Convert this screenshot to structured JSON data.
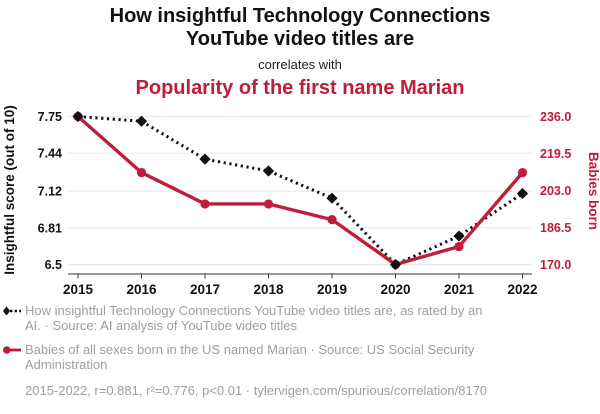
{
  "header": {
    "title_line1": "How insightful Technology Connections",
    "title_line2": "YouTube video titles are",
    "connector": "correlates with",
    "subtitle": "Popularity of the first name Marian"
  },
  "colors": {
    "accent_red": "#c01d3a",
    "series_black": "#111111",
    "legend_gray": "#9e9e9e",
    "gridline": "#ebebeb",
    "axis_line": "#333333"
  },
  "chart_data": {
    "type": "line",
    "x": [
      2015,
      2016,
      2017,
      2018,
      2019,
      2020,
      2021,
      2022
    ],
    "x_tick_labels": [
      "2015",
      "2016",
      "2017",
      "2018",
      "2019",
      "2020",
      "2021",
      "2022"
    ],
    "series": [
      {
        "name": "Insightful score",
        "axis": "left",
        "color": "#111111",
        "line_style": "dotted",
        "marker": "diamond",
        "values": [
          7.75,
          7.71,
          7.39,
          7.29,
          7.06,
          6.5,
          6.74,
          7.1
        ]
      },
      {
        "name": "Babies born",
        "axis": "right",
        "color": "#c01d3a",
        "line_style": "solid",
        "marker": "circle",
        "values": [
          236,
          211,
          197,
          197,
          190,
          170,
          178,
          211
        ]
      }
    ],
    "left_axis": {
      "label": "Insightful score (out of 10)",
      "min": 6.5,
      "max": 7.75,
      "tick_values": [
        7.75,
        7.44,
        7.12,
        6.81,
        6.5
      ],
      "tick_labels": [
        "7.75",
        "7.44",
        "7.12",
        "6.81",
        "6.5"
      ]
    },
    "right_axis": {
      "label": "Babies born",
      "min": 170.0,
      "max": 236.0,
      "tick_values": [
        236.0,
        219.5,
        203.0,
        186.5,
        170.0
      ],
      "tick_labels": [
        "236.0",
        "219.5",
        "203.0",
        "186.5",
        "170.0"
      ]
    },
    "grid": true,
    "legend_position": "bottom"
  },
  "legend": {
    "series1": "How insightful Technology Connections YouTube video titles are, as rated by an AI. · Source: AI analysis of YouTube video titles",
    "series2": "Babies of all sexes born in the US named Marian · Source: US Social Security Administration"
  },
  "footer": {
    "stats": "2015-2022, r=0.881, r²=0.776, p<0.01 · tylervigen.com/spurious/correlation/8170"
  }
}
